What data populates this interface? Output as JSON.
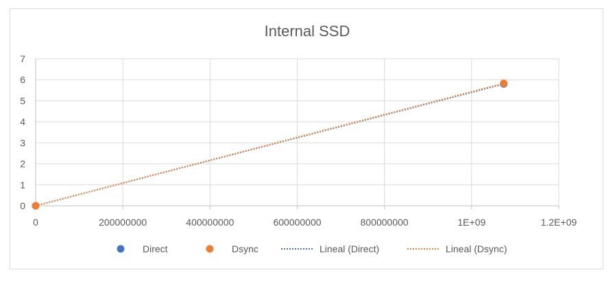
{
  "chart_data": {
    "type": "scatter",
    "title": "Internal SSD",
    "xlabel": "",
    "ylabel": "",
    "xlim": [
      0,
      1200000000
    ],
    "ylim": [
      0,
      7
    ],
    "x_ticks": [
      0,
      200000000,
      400000000,
      600000000,
      800000000,
      1000000000,
      1200000000
    ],
    "x_tick_labels": [
      "0",
      "200000000",
      "400000000",
      "600000000",
      "800000000",
      "1E+09",
      "1.2E+09"
    ],
    "y_ticks": [
      0,
      1,
      2,
      3,
      4,
      5,
      6,
      7
    ],
    "y_tick_labels": [
      "0",
      "1",
      "2",
      "3",
      "4",
      "5",
      "6",
      "7"
    ],
    "grid": true,
    "legend_position": "bottom",
    "series": [
      {
        "name": "Direct",
        "color": "#4472c4",
        "points": [
          {
            "x": 0,
            "y": 0
          },
          {
            "x": 1073741824,
            "y": 5.8
          }
        ]
      },
      {
        "name": "Dsync",
        "color": "#ed7d31",
        "points": [
          {
            "x": 0,
            "y": 0
          },
          {
            "x": 1073741824,
            "y": 5.83
          }
        ]
      }
    ],
    "trendlines": [
      {
        "name": "Lineal (Direct)",
        "color": "#4472c4",
        "style": "dotted",
        "from": {
          "x": 0,
          "y": 0
        },
        "to": {
          "x": 1073741824,
          "y": 5.8
        }
      },
      {
        "name": "Lineal (Dsync)",
        "color": "#ed7d31",
        "style": "dotted",
        "from": {
          "x": 0,
          "y": 0
        },
        "to": {
          "x": 1073741824,
          "y": 5.83
        }
      }
    ],
    "legend": [
      {
        "label": "Direct",
        "kind": "marker",
        "color": "#4472c4"
      },
      {
        "label": "Dsync",
        "kind": "marker",
        "color": "#ed7d31"
      },
      {
        "label": "Lineal (Direct)",
        "kind": "dotted-line",
        "color": "#4472c4"
      },
      {
        "label": "Lineal (Dsync)",
        "kind": "dotted-line",
        "color": "#ed7d31"
      }
    ]
  }
}
